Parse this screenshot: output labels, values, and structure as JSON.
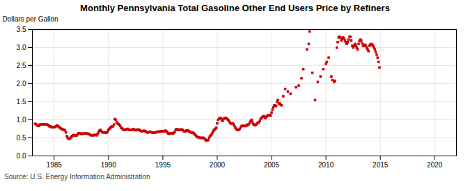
{
  "chart_data": {
    "type": "scatter",
    "title": "Monthly Pennsylvania Total Gasoline Other End Users Price by Refiners",
    "ylabel": "Dollars per Gallon",
    "source": "Source: U.S. Energy Information Administration",
    "color": "#cc0000",
    "marker": "square",
    "grid": true,
    "xlim": [
      1983,
      2022
    ],
    "ylim": [
      0.0,
      3.5
    ],
    "xticks": [
      1985,
      1990,
      1995,
      2000,
      2005,
      2010,
      2015,
      2020
    ],
    "yticks": [
      {
        "value": 0.0,
        "label": "0.0"
      },
      0.5,
      {
        "value": 1.0,
        "label": "1.0"
      },
      1.5,
      {
        "value": 2.0,
        "label": "2.0"
      },
      2.5,
      {
        "value": 3.0,
        "label": "3.0"
      },
      3.5
    ],
    "x": [
      1983.25,
      1983.33,
      1983.42,
      1983.5,
      1983.58,
      1983.67,
      1983.75,
      1983.83,
      1983.92,
      1984.0,
      1984.08,
      1984.17,
      1984.25,
      1984.33,
      1984.42,
      1984.5,
      1984.58,
      1984.67,
      1984.75,
      1984.83,
      1984.92,
      1985.0,
      1985.08,
      1985.17,
      1985.25,
      1985.33,
      1985.42,
      1985.5,
      1985.58,
      1985.67,
      1985.75,
      1985.83,
      1985.92,
      1986.0,
      1986.08,
      1986.17,
      1986.25,
      1986.33,
      1986.42,
      1986.5,
      1986.58,
      1986.67,
      1986.75,
      1986.83,
      1986.92,
      1987.0,
      1987.08,
      1987.17,
      1987.25,
      1987.33,
      1987.42,
      1987.5,
      1987.58,
      1987.67,
      1987.75,
      1987.83,
      1987.92,
      1988.0,
      1988.08,
      1988.17,
      1988.25,
      1988.33,
      1988.42,
      1988.5,
      1988.58,
      1988.67,
      1988.75,
      1988.83,
      1988.92,
      1989.0,
      1989.08,
      1989.17,
      1989.25,
      1989.33,
      1989.42,
      1989.5,
      1989.58,
      1989.67,
      1989.75,
      1989.83,
      1989.92,
      1990.0,
      1990.08,
      1990.17,
      1990.25,
      1990.33,
      1990.42,
      1990.5,
      1990.58,
      1990.67,
      1990.75,
      1990.83,
      1990.92,
      1991.0,
      1991.08,
      1991.17,
      1991.25,
      1991.33,
      1991.42,
      1991.5,
      1991.58,
      1991.67,
      1991.75,
      1991.83,
      1991.92,
      1992.0,
      1992.08,
      1992.17,
      1992.25,
      1992.33,
      1992.42,
      1992.5,
      1992.58,
      1992.67,
      1992.75,
      1992.83,
      1992.92,
      1993.0,
      1993.08,
      1993.17,
      1993.25,
      1993.33,
      1993.42,
      1993.5,
      1993.58,
      1993.67,
      1993.75,
      1993.83,
      1993.92,
      1994.0,
      1994.08,
      1994.17,
      1994.25,
      1994.33,
      1994.42,
      1994.5,
      1994.58,
      1994.67,
      1994.75,
      1994.83,
      1994.92,
      1995.0,
      1995.08,
      1995.17,
      1995.25,
      1995.33,
      1995.42,
      1995.5,
      1995.58,
      1995.67,
      1995.75,
      1995.83,
      1995.92,
      1996.0,
      1996.08,
      1996.17,
      1996.25,
      1996.33,
      1996.42,
      1996.5,
      1996.58,
      1996.67,
      1996.75,
      1996.83,
      1996.92,
      1997.0,
      1997.08,
      1997.17,
      1997.25,
      1997.33,
      1997.42,
      1997.5,
      1997.58,
      1997.67,
      1997.75,
      1997.83,
      1997.92,
      1998.0,
      1998.08,
      1998.17,
      1998.25,
      1998.33,
      1998.42,
      1998.5,
      1998.58,
      1998.67,
      1998.75,
      1998.83,
      1998.92,
      1999.0,
      1999.08,
      1999.17,
      1999.25,
      1999.33,
      1999.42,
      1999.5,
      1999.58,
      1999.67,
      1999.75,
      1999.83,
      1999.92,
      2000.0,
      2000.08,
      2000.17,
      2000.25,
      2000.33,
      2000.42,
      2000.5,
      2000.58,
      2000.67,
      2000.75,
      2000.83,
      2000.92,
      2001.0,
      2001.08,
      2001.17,
      2001.25,
      2001.33,
      2001.42,
      2001.5,
      2001.58,
      2001.67,
      2001.75,
      2001.83,
      2001.92,
      2002.0,
      2002.08,
      2002.17,
      2002.25,
      2002.33,
      2002.42,
      2002.5,
      2002.58,
      2002.67,
      2002.75,
      2002.83,
      2002.92,
      2003.0,
      2003.08,
      2003.17,
      2003.25,
      2003.33,
      2003.42,
      2003.5,
      2003.58,
      2003.67,
      2003.75,
      2003.83,
      2003.92,
      2004.0,
      2004.08,
      2004.17,
      2004.25,
      2004.33,
      2004.42,
      2004.5,
      2004.58,
      2004.67,
      2004.75,
      2004.83,
      2004.92,
      2005.0,
      2005.08,
      2005.17,
      2005.25,
      2005.33,
      2005.42,
      2005.5,
      2005.58,
      2005.67,
      2005.75,
      2005.83,
      2005.92,
      2006.08,
      2006.25,
      2006.5,
      2006.75,
      2007.25,
      2007.5,
      2007.75,
      2007.92,
      2008.25,
      2008.42,
      2008.5,
      2008.75,
      2009.0,
      2009.25,
      2009.5,
      2009.75,
      2010.0,
      2010.08,
      2010.25,
      2010.5,
      2010.58,
      2010.75,
      2010.83,
      2011.0,
      2011.08,
      2011.17,
      2011.25,
      2011.33,
      2011.42,
      2011.5,
      2011.58,
      2011.67,
      2011.75,
      2011.83,
      2011.92,
      2012.0,
      2012.08,
      2012.17,
      2012.25,
      2012.33,
      2012.42,
      2012.5,
      2012.58,
      2012.67,
      2012.75,
      2012.83,
      2012.92,
      2013.0,
      2013.08,
      2013.17,
      2013.25,
      2013.33,
      2013.42,
      2013.5,
      2013.58,
      2013.67,
      2013.75,
      2013.83,
      2013.92,
      2014.0,
      2014.08,
      2014.17,
      2014.25,
      2014.33,
      2014.42,
      2014.5,
      2014.58,
      2014.67,
      2014.75,
      2014.83,
      2014.92
    ],
    "values": [
      0.89,
      0.88,
      0.85,
      0.84,
      0.83,
      0.86,
      0.88,
      0.88,
      0.87,
      0.87,
      0.87,
      0.88,
      0.88,
      0.87,
      0.86,
      0.84,
      0.82,
      0.81,
      0.8,
      0.79,
      0.8,
      0.8,
      0.8,
      0.82,
      0.84,
      0.83,
      0.81,
      0.79,
      0.77,
      0.75,
      0.74,
      0.73,
      0.72,
      0.71,
      0.65,
      0.55,
      0.5,
      0.47,
      0.47,
      0.5,
      0.53,
      0.55,
      0.57,
      0.58,
      0.57,
      0.56,
      0.57,
      0.6,
      0.63,
      0.63,
      0.62,
      0.61,
      0.61,
      0.62,
      0.62,
      0.62,
      0.62,
      0.62,
      0.62,
      0.61,
      0.6,
      0.58,
      0.57,
      0.57,
      0.57,
      0.58,
      0.58,
      0.58,
      0.57,
      0.61,
      0.65,
      0.7,
      0.72,
      0.69,
      0.66,
      0.65,
      0.65,
      0.65,
      0.64,
      0.65,
      0.67,
      0.72,
      0.75,
      0.78,
      0.8,
      0.82,
      0.82,
      0.87,
      1.02,
      1.0,
      0.93,
      0.9,
      0.88,
      0.87,
      0.83,
      0.78,
      0.76,
      0.74,
      0.72,
      0.72,
      0.73,
      0.74,
      0.75,
      0.73,
      0.72,
      0.72,
      0.72,
      0.72,
      0.74,
      0.74,
      0.72,
      0.71,
      0.72,
      0.73,
      0.73,
      0.72,
      0.7,
      0.69,
      0.68,
      0.69,
      0.7,
      0.69,
      0.68,
      0.66,
      0.65,
      0.65,
      0.66,
      0.67,
      0.66,
      0.65,
      0.64,
      0.64,
      0.65,
      0.65,
      0.66,
      0.67,
      0.67,
      0.67,
      0.68,
      0.68,
      0.68,
      0.68,
      0.68,
      0.69,
      0.7,
      0.68,
      0.65,
      0.62,
      0.61,
      0.62,
      0.63,
      0.63,
      0.62,
      0.64,
      0.66,
      0.72,
      0.74,
      0.74,
      0.72,
      0.72,
      0.73,
      0.73,
      0.73,
      0.72,
      0.69,
      0.68,
      0.68,
      0.7,
      0.71,
      0.7,
      0.68,
      0.66,
      0.65,
      0.65,
      0.65,
      0.63,
      0.6,
      0.58,
      0.55,
      0.52,
      0.52,
      0.51,
      0.5,
      0.5,
      0.5,
      0.5,
      0.5,
      0.48,
      0.45,
      0.43,
      0.43,
      0.44,
      0.5,
      0.55,
      0.57,
      0.6,
      0.65,
      0.7,
      0.73,
      0.75,
      0.78,
      0.9,
      1.0,
      1.03,
      1.05,
      1.05,
      1.0,
      0.97,
      1.02,
      1.05,
      1.05,
      1.05,
      1.02,
      1.0,
      0.97,
      0.92,
      0.9,
      0.9,
      0.9,
      0.88,
      0.83,
      0.78,
      0.75,
      0.72,
      0.72,
      0.73,
      0.75,
      0.8,
      0.83,
      0.83,
      0.83,
      0.83,
      0.83,
      0.84,
      0.85,
      0.87,
      0.88,
      0.93,
      0.97,
      1.0,
      0.93,
      0.88,
      0.85,
      0.85,
      0.87,
      0.9,
      0.92,
      0.93,
      0.97,
      1.03,
      1.05,
      1.08,
      1.1,
      1.1,
      1.05,
      1.07,
      1.1,
      1.12,
      1.13,
      1.13,
      1.12,
      1.2,
      1.28,
      1.35,
      1.4,
      1.4,
      1.38,
      1.5,
      1.55,
      1.45,
      1.45,
      1.42,
      1.4,
      1.65,
      1.85,
      1.78,
      1.72,
      1.9,
      1.95,
      2.15,
      2.4,
      2.95,
      3.1,
      3.45,
      2.3,
      1.55,
      2.05,
      2.2,
      2.4,
      2.55,
      2.6,
      2.72,
      2.2,
      2.1,
      2.05,
      2.08,
      3.0,
      3.15,
      3.28,
      3.3,
      3.28,
      3.2,
      3.25,
      3.28,
      3.25,
      3.2,
      3.15,
      3.1,
      3.15,
      3.22,
      3.3,
      3.3,
      3.2,
      3.05,
      3.0,
      3.05,
      3.1,
      3.05,
      3.0,
      2.95,
      3.1,
      3.18,
      3.22,
      3.2,
      3.12,
      3.05,
      3.05,
      3.08,
      3.05,
      3.0,
      2.95,
      2.9,
      3.05,
      3.08,
      3.1,
      3.08,
      3.05,
      3.0,
      2.95,
      2.88,
      2.8,
      2.72,
      2.6,
      2.45
    ]
  }
}
